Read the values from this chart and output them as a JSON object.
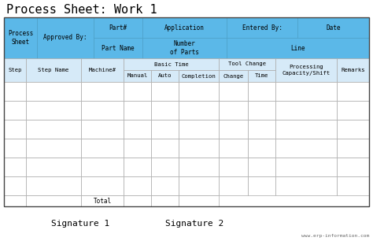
{
  "title": "Process Sheet: Work 1",
  "bg_color": "#ffffff",
  "header_bg": "#5bb8e8",
  "header_border": "#4a9fc8",
  "body_bg": "#ffffff",
  "body_border": "#aaaaaa",
  "light_col_bg": "#d6eaf8",
  "title_fontsize": 11,
  "header_fontsize": 5.5,
  "col_header_fontsize": 5.2,
  "body_fontsize": 5.0,
  "signature_fontsize": 8,
  "watermark_fontsize": 4.5,
  "watermark": "www.erp-information.com",
  "signatures": [
    "Signature 1",
    "Signature 2"
  ],
  "num_data_rows": 6,
  "fig_w": 4.74,
  "fig_h": 3.06,
  "dpi": 100
}
